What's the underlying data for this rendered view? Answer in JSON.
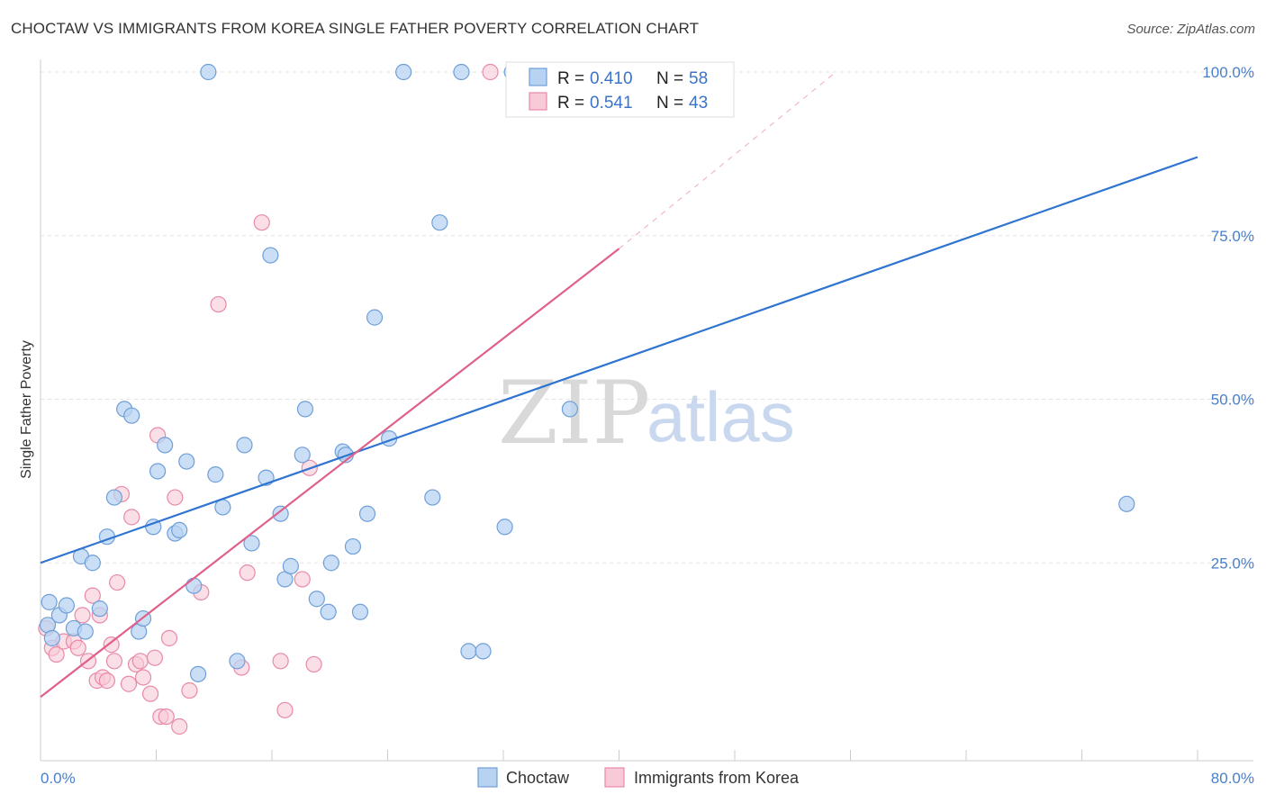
{
  "header": {
    "title": "CHOCTAW VS IMMIGRANTS FROM KOREA SINGLE FATHER POVERTY CORRELATION CHART",
    "source": "Source: ZipAtlas.com"
  },
  "watermark": {
    "zip": "ZIP",
    "atlas": "atlas"
  },
  "legend_top": {
    "r_label": "R =",
    "n_label": "N =",
    "rows": [
      {
        "r": "0.410",
        "n": "58"
      },
      {
        "r": "0.541",
        "n": "43"
      }
    ]
  },
  "colors": {
    "choctaw_fill": "#b8d3f2",
    "choctaw_stroke": "#6f9fd8",
    "choctaw_line": "#2f74d0",
    "korea_fill": "#f8c9d7",
    "korea_stroke": "#e88aa8",
    "korea_line": "#e0608a"
  },
  "chart_data": {
    "type": "scatter",
    "xlabel": "",
    "ylabel": "Single Father Poverty",
    "xlim": [
      0,
      80
    ],
    "ylim": [
      0,
      100
    ],
    "x_tick_labels": {
      "min": "0.0%",
      "max": "80.0%"
    },
    "y_tick_labels": [
      "25.0%",
      "50.0%",
      "75.0%",
      "100.0%"
    ],
    "y_ticks": [
      25,
      50,
      75,
      100
    ],
    "legend_position": "top-center",
    "series": [
      {
        "name": "Choctaw",
        "trend": {
          "x0": 0,
          "y0": 25,
          "x1": 80,
          "y1": 87
        },
        "points": [
          [
            0.5,
            15.5
          ],
          [
            0.8,
            13.5
          ],
          [
            0.6,
            19
          ],
          [
            1.3,
            17
          ],
          [
            1.8,
            18.5
          ],
          [
            2.3,
            15
          ],
          [
            2.8,
            26
          ],
          [
            3.1,
            14.5
          ],
          [
            3.6,
            25
          ],
          [
            4.1,
            18
          ],
          [
            4.6,
            29
          ],
          [
            5.1,
            35
          ],
          [
            5.8,
            48.5
          ],
          [
            6.3,
            47.5
          ],
          [
            6.8,
            14.5
          ],
          [
            7.1,
            16.5
          ],
          [
            7.8,
            30.5
          ],
          [
            8.1,
            39
          ],
          [
            8.6,
            43
          ],
          [
            9.3,
            29.5
          ],
          [
            9.6,
            30
          ],
          [
            10.1,
            40.5
          ],
          [
            10.6,
            21.5
          ],
          [
            10.9,
            8
          ],
          [
            11.6,
            100
          ],
          [
            12.1,
            38.5
          ],
          [
            12.6,
            33.5
          ],
          [
            13.6,
            10
          ],
          [
            14.1,
            43
          ],
          [
            14.6,
            28
          ],
          [
            15.6,
            38
          ],
          [
            15.9,
            72
          ],
          [
            16.6,
            32.5
          ],
          [
            16.9,
            22.5
          ],
          [
            17.3,
            24.5
          ],
          [
            18.1,
            41.5
          ],
          [
            18.3,
            48.5
          ],
          [
            19.1,
            19.5
          ],
          [
            19.9,
            17.5
          ],
          [
            20.1,
            25
          ],
          [
            20.9,
            42
          ],
          [
            21.1,
            41.5
          ],
          [
            21.6,
            27.5
          ],
          [
            22.1,
            17.5
          ],
          [
            22.6,
            32.5
          ],
          [
            23.1,
            62.5
          ],
          [
            24.1,
            44
          ],
          [
            25.1,
            100
          ],
          [
            27.1,
            35
          ],
          [
            27.6,
            77
          ],
          [
            29.1,
            100
          ],
          [
            29.6,
            11.5
          ],
          [
            30.6,
            11.5
          ],
          [
            32.1,
            30.5
          ],
          [
            32.6,
            100
          ],
          [
            36.6,
            48.5
          ],
          [
            75.1,
            34
          ]
        ]
      },
      {
        "name": "Immigrants from Korea",
        "trend": {
          "x0": 0,
          "y0": 4.5,
          "x1": 40,
          "y1": 73
        },
        "trend_dashed": {
          "x0": 40,
          "y0": 73,
          "x1": 55,
          "y1": 100
        },
        "points": [
          [
            0.4,
            15
          ],
          [
            0.8,
            12
          ],
          [
            1.1,
            11
          ],
          [
            1.6,
            13
          ],
          [
            2.3,
            13
          ],
          [
            2.6,
            12
          ],
          [
            2.9,
            17
          ],
          [
            3.3,
            10
          ],
          [
            3.6,
            20
          ],
          [
            3.9,
            7
          ],
          [
            4.1,
            17
          ],
          [
            4.3,
            7.5
          ],
          [
            4.6,
            7
          ],
          [
            4.9,
            12.5
          ],
          [
            5.1,
            10
          ],
          [
            5.3,
            22
          ],
          [
            5.6,
            35.5
          ],
          [
            6.1,
            6.5
          ],
          [
            6.3,
            32
          ],
          [
            6.6,
            9.5
          ],
          [
            6.9,
            10
          ],
          [
            7.1,
            7.5
          ],
          [
            7.6,
            5
          ],
          [
            7.9,
            10.5
          ],
          [
            8.1,
            44.5
          ],
          [
            8.3,
            1.5
          ],
          [
            8.7,
            1.5
          ],
          [
            8.9,
            13.5
          ],
          [
            9.3,
            35
          ],
          [
            9.6,
            0
          ],
          [
            10.3,
            5.5
          ],
          [
            11.1,
            20.5
          ],
          [
            12.3,
            64.5
          ],
          [
            13.9,
            9
          ],
          [
            14.3,
            23.5
          ],
          [
            15.3,
            77
          ],
          [
            16.6,
            10
          ],
          [
            16.9,
            2.5
          ],
          [
            18.1,
            22.5
          ],
          [
            18.6,
            39.5
          ],
          [
            18.9,
            9.5
          ],
          [
            31.1,
            100
          ]
        ]
      }
    ]
  },
  "legend_bottom": [
    {
      "label": "Choctaw"
    },
    {
      "label": "Immigrants from Korea"
    }
  ]
}
